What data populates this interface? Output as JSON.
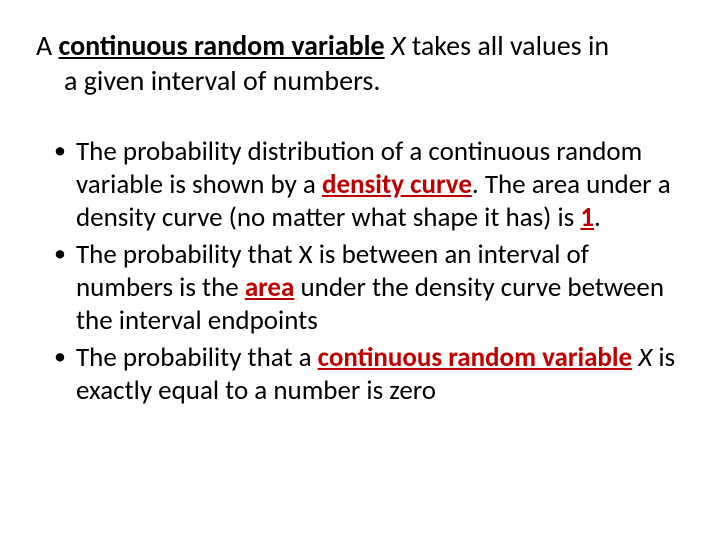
{
  "heading": {
    "line1_prefix": "A ",
    "line1_term": "continuous random variable",
    "line1_space": "  ",
    "line1_var": "X",
    "line1_rest": " takes all values in",
    "line2": "a given interval of numbers."
  },
  "bullets": {
    "b1": {
      "t1": "The probability distribution of a continuous random variable is shown by a ",
      "term1": "density curve",
      "t2": ". The area under a density curve (no matter what shape it has) is ",
      "term2": "1",
      "t3": "."
    },
    "b2": {
      "t1": "The probability that X is between an interval of numbers is the ",
      "term1": "area",
      "t2": " under the density curve between the interval endpoints"
    },
    "b3": {
      "t1": "The probability that a ",
      "term1": "continuous random variable",
      "t2": " ",
      "var": "X",
      "t3": " is exactly equal to a number is zero"
    }
  },
  "colors": {
    "text": "#000000",
    "accent": "#c00000",
    "background": "#ffffff"
  },
  "typography": {
    "heading_fontsize": 28,
    "body_fontsize": 27,
    "font_family": "Calibri"
  }
}
